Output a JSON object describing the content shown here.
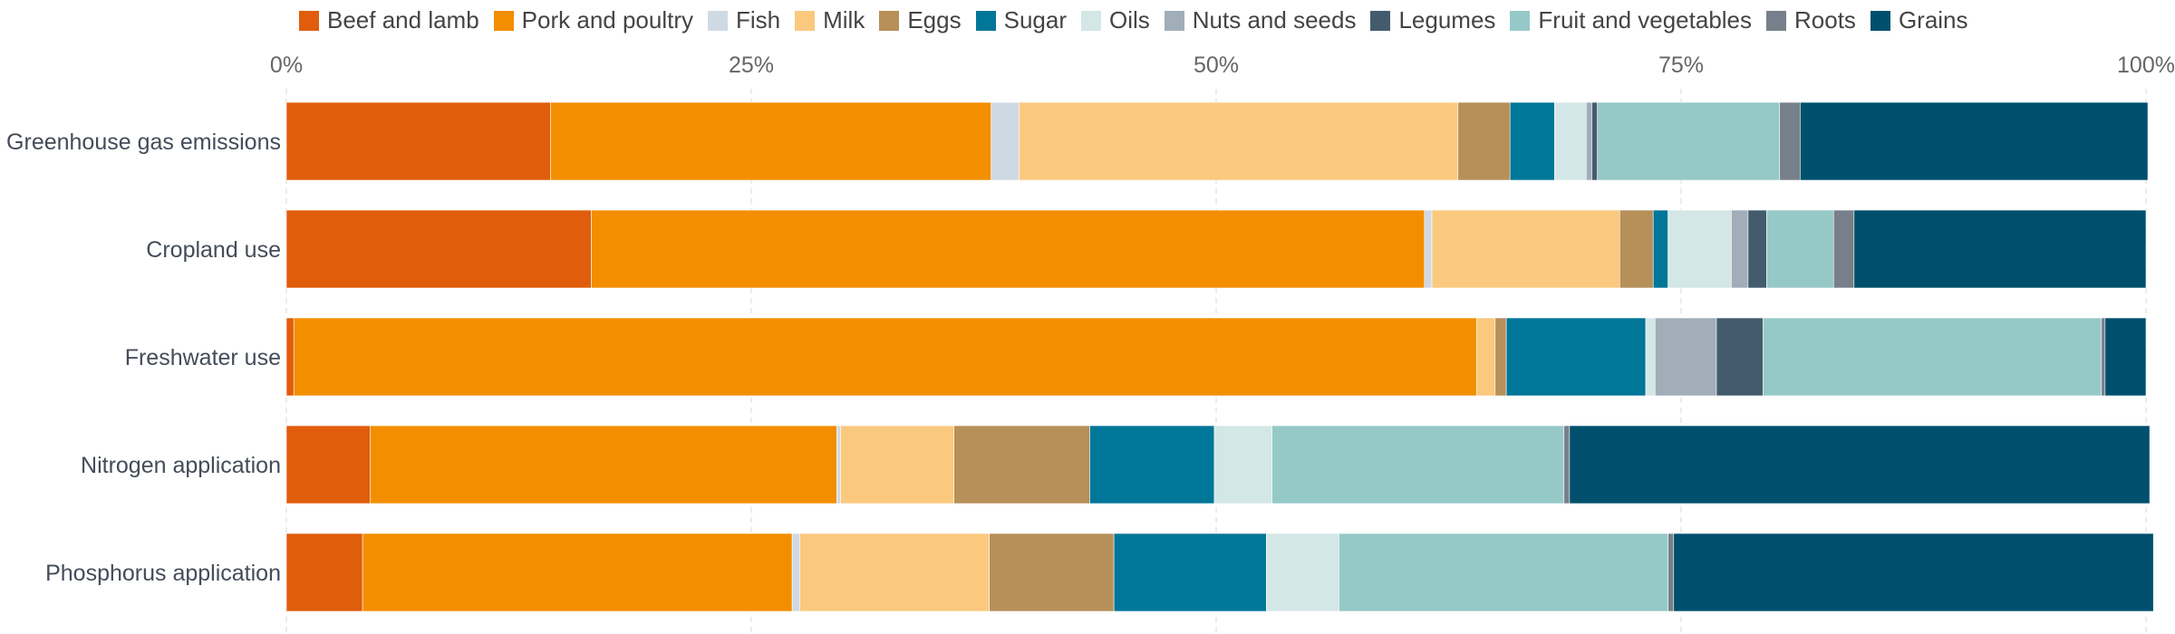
{
  "chart_data": {
    "type": "bar",
    "orientation": "horizontal",
    "stacked": true,
    "title": "",
    "xlabel": "",
    "ylabel": "",
    "xlim": [
      0,
      100
    ],
    "x_ticks": [
      "0%",
      "25%",
      "50%",
      "75%",
      "100%"
    ],
    "x_tick_values": [
      0,
      25,
      50,
      75,
      100
    ],
    "grid": true,
    "legend_position": "top",
    "categories": [
      "Greenhouse gas emissions",
      "Cropland use",
      "Freshwater use",
      "Nitrogen application",
      "Phosphorus application"
    ],
    "series": [
      {
        "name": "Beef and lamb",
        "color": "#e05d0b",
        "values": [
          14.2,
          16.4,
          0.4,
          4.5,
          4.1
        ]
      },
      {
        "name": "Pork and poultry",
        "color": "#f28e00",
        "values": [
          23.7,
          44.8,
          63.6,
          25.1,
          23.1
        ]
      },
      {
        "name": "Fish",
        "color": "#cfd9e4",
        "values": [
          1.5,
          0.4,
          0.0,
          0.2,
          0.4
        ]
      },
      {
        "name": "Milk",
        "color": "#fac97e",
        "values": [
          23.6,
          10.1,
          1.0,
          6.1,
          10.2
        ]
      },
      {
        "name": "Eggs",
        "color": "#b78f58",
        "values": [
          2.8,
          1.8,
          0.6,
          7.3,
          6.7
        ]
      },
      {
        "name": "Sugar",
        "color": "#007698",
        "values": [
          2.4,
          0.8,
          7.5,
          6.7,
          8.2
        ]
      },
      {
        "name": "Oils",
        "color": "#d3e7e6",
        "values": [
          1.7,
          3.4,
          0.5,
          3.1,
          3.9
        ]
      },
      {
        "name": "Nuts and seeds",
        "color": "#a1adb9",
        "values": [
          0.3,
          0.9,
          3.3,
          0.0,
          0.0
        ]
      },
      {
        "name": "Legumes",
        "color": "#445b6d",
        "values": [
          0.3,
          1.0,
          2.5,
          0.0,
          0.0
        ]
      },
      {
        "name": "Fruit and vegetables",
        "color": "#95c9c8",
        "values": [
          9.8,
          3.6,
          18.2,
          15.7,
          17.7
        ]
      },
      {
        "name": "Roots",
        "color": "#77808a",
        "values": [
          1.1,
          1.1,
          0.2,
          0.3,
          0.3
        ]
      },
      {
        "name": "Grains",
        "color": "#00506d",
        "values": [
          18.7,
          15.7,
          2.2,
          31.2,
          25.8
        ]
      }
    ]
  }
}
